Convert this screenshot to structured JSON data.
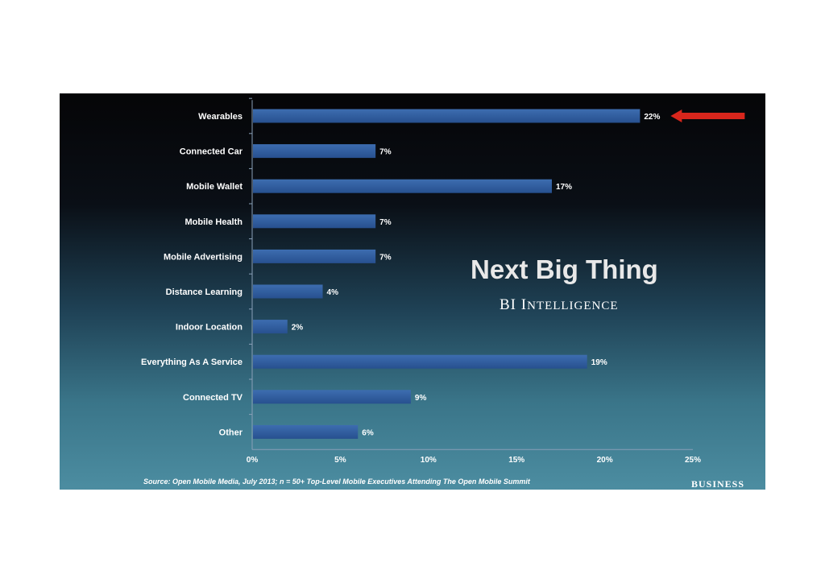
{
  "chart_data": {
    "type": "bar",
    "orientation": "horizontal",
    "categories": [
      "Wearables",
      "Connected Car",
      "Mobile Wallet",
      "Mobile Health",
      "Mobile Advertising",
      "Distance Learning",
      "Indoor Location",
      "Everything As A Service",
      "Connected TV",
      "Other"
    ],
    "values": [
      22,
      7,
      17,
      7,
      7,
      4,
      2,
      19,
      9,
      6
    ],
    "value_labels": [
      "22%",
      "7%",
      "17%",
      "7%",
      "7%",
      "4%",
      "2%",
      "19%",
      "9%",
      "6%"
    ],
    "x_ticks": [
      "0%",
      "5%",
      "10%",
      "15%",
      "20%",
      "25%"
    ],
    "xlim": [
      0,
      25
    ],
    "grid": false,
    "bar_color": "#2f5a9a",
    "highlight_color": "#d8261c",
    "highlighted_category": "Wearables"
  },
  "title": "Next Big Thing",
  "brand": {
    "first": "BI ",
    "cap": "I",
    "rest": "NTELLIGENCE"
  },
  "source": "Source: Open Mobile Media, July 2013; n = 50+ Top-Level Mobile Executives Attending The Open Mobile Summit",
  "publisher": "BUSINESS"
}
